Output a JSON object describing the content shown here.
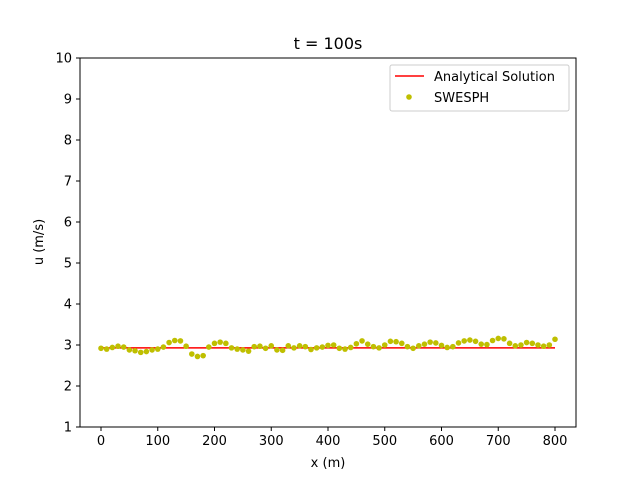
{
  "chart_data": {
    "type": "scatter",
    "title": "t = 100s",
    "xlabel": "x (m)",
    "ylabel": "u (m/s)",
    "xlim": [
      -37,
      837
    ],
    "ylim": [
      1,
      10
    ],
    "xticks": [
      0,
      100,
      200,
      300,
      400,
      500,
      600,
      700,
      800
    ],
    "yticks": [
      1,
      2,
      3,
      4,
      5,
      6,
      7,
      8,
      9,
      10
    ],
    "grid": false,
    "legend_position": "upper right",
    "series": [
      {
        "name": "Analytical Solution",
        "kind": "line",
        "color": "#ff0000",
        "x": [
          0,
          800
        ],
        "y": [
          2.93,
          2.93
        ]
      },
      {
        "name": "SWESPH",
        "kind": "scatter",
        "color": "#bfbf00",
        "x": [
          0,
          10,
          20,
          30,
          40,
          50,
          60,
          70,
          80,
          90,
          100,
          110,
          120,
          130,
          140,
          150,
          160,
          170,
          180,
          190,
          200,
          210,
          220,
          230,
          240,
          250,
          260,
          270,
          280,
          290,
          300,
          310,
          320,
          330,
          340,
          350,
          360,
          370,
          380,
          390,
          400,
          410,
          420,
          430,
          440,
          450,
          460,
          470,
          480,
          490,
          500,
          510,
          520,
          530,
          540,
          550,
          560,
          570,
          580,
          590,
          600,
          610,
          620,
          630,
          640,
          650,
          660,
          670,
          680,
          690,
          700,
          710,
          720,
          730,
          740,
          750,
          760,
          770,
          780,
          790,
          800
        ],
        "y": [
          2.92,
          2.9,
          2.94,
          2.97,
          2.95,
          2.88,
          2.86,
          2.82,
          2.84,
          2.88,
          2.9,
          2.95,
          3.06,
          3.11,
          3.1,
          2.97,
          2.78,
          2.72,
          2.74,
          2.95,
          3.04,
          3.07,
          3.04,
          2.93,
          2.9,
          2.88,
          2.85,
          2.96,
          2.97,
          2.92,
          2.98,
          2.88,
          2.87,
          2.98,
          2.93,
          2.98,
          2.96,
          2.89,
          2.93,
          2.95,
          2.99,
          3.0,
          2.92,
          2.9,
          2.94,
          3.03,
          3.1,
          3.02,
          2.96,
          2.93,
          3.0,
          3.09,
          3.08,
          3.04,
          2.96,
          2.92,
          2.98,
          3.02,
          3.07,
          3.05,
          2.99,
          2.94,
          2.96,
          3.05,
          3.1,
          3.12,
          3.09,
          3.02,
          3.01,
          3.11,
          3.16,
          3.15,
          3.04,
          2.98,
          3.0,
          3.06,
          3.04,
          3.0,
          2.97,
          3.0,
          3.14
        ]
      }
    ]
  }
}
